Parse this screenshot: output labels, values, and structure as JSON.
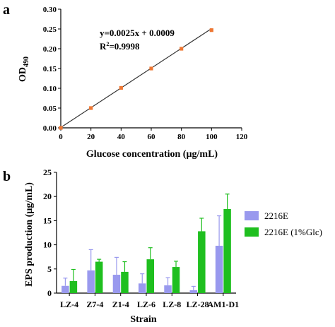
{
  "panels": {
    "a": {
      "label": "a"
    },
    "b": {
      "label": "b"
    }
  },
  "chart_data": [
    {
      "type": "scatter",
      "panel": "a",
      "title": "",
      "xlabel": "Glucose concentration (µg/mL)",
      "ylabel_main": "OD",
      "ylabel_sub": "490",
      "xlim": [
        0,
        120
      ],
      "ylim": [
        0,
        0.3
      ],
      "xticks": [
        "0",
        "20",
        "40",
        "60",
        "80",
        "100",
        "120"
      ],
      "yticks": [
        "0.00",
        "0.05",
        "0.10",
        "0.15",
        "0.20",
        "0.25",
        "0.30"
      ],
      "x": [
        0,
        20,
        40,
        60,
        80,
        100
      ],
      "y": [
        0.0,
        0.05,
        0.101,
        0.15,
        0.2,
        0.247
      ],
      "fit": {
        "slope": 0.0025,
        "intercept": 0.0009
      },
      "equation": "y=0.0025x + 0.0009",
      "r2_prefix": "R",
      "r2_sup": "2",
      "r2_value": "=0.9998",
      "marker_color": "#ee7733",
      "line_color": "#333333"
    },
    {
      "type": "bar",
      "panel": "b",
      "title": "",
      "xlabel": "Strain",
      "ylabel": "EPS production (µg/mL)",
      "ylim": [
        0,
        25
      ],
      "yticks": [
        "0",
        "5",
        "10",
        "15",
        "20",
        "25"
      ],
      "categories": [
        "LZ-4",
        "Z7-4",
        "Z1-4",
        "LZ-6",
        "LZ-8",
        "LZ-28",
        "AM1-D1"
      ],
      "series": [
        {
          "name": "2216E",
          "color": "#9999ee",
          "values": [
            1.5,
            4.7,
            3.8,
            2.0,
            1.6,
            0.6,
            9.8
          ],
          "errors": [
            1.6,
            4.3,
            3.6,
            2.0,
            1.6,
            0.8,
            6.2
          ]
        },
        {
          "name": "2216E (1%Glc)",
          "color": "#1fbf1f",
          "values": [
            2.5,
            6.5,
            4.4,
            7.0,
            5.4,
            12.8,
            17.4
          ],
          "errors": [
            2.4,
            0.5,
            2.1,
            2.4,
            1.2,
            2.7,
            3.1
          ]
        }
      ],
      "legend_position": "right"
    }
  ]
}
